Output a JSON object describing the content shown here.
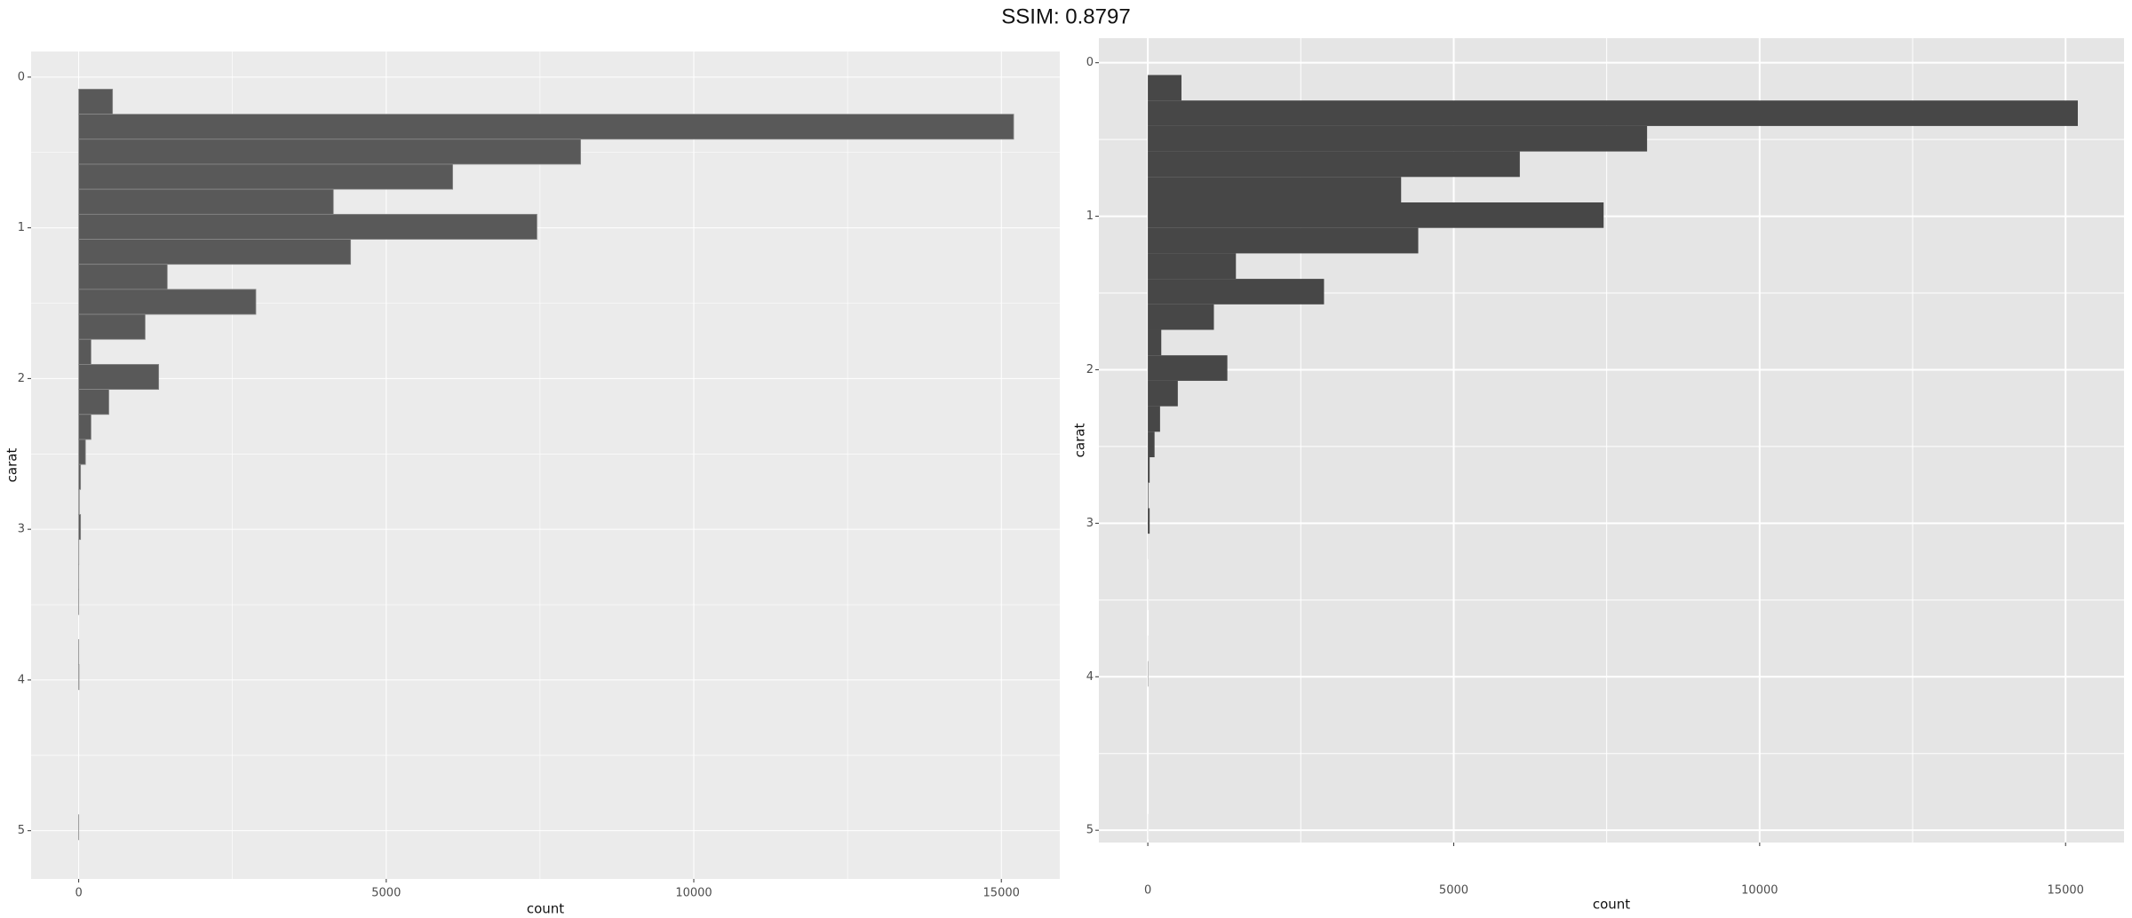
{
  "title": "SSIM: 0.8797",
  "chart_data": [
    {
      "type": "histogram",
      "orientation": "horizontal",
      "xlabel": "count",
      "ylabel": "carat",
      "color": "#595959",
      "outline": "#8a8a8a",
      "background": "#ebebeb",
      "bins": [
        0.08,
        0.246,
        0.412,
        0.578,
        0.744,
        0.91,
        1.076,
        1.242,
        1.408,
        1.574,
        1.74,
        1.906,
        2.072,
        2.238,
        2.404,
        2.57,
        2.736,
        2.902,
        3.068,
        3.234,
        3.4,
        3.566,
        3.732,
        3.898,
        4.064,
        4.23,
        4.396,
        4.562,
        4.728,
        4.894,
        5.06
      ],
      "values": [
        550,
        15200,
        8160,
        6080,
        4140,
        7450,
        4420,
        1440,
        2880,
        1080,
        200,
        1300,
        490,
        200,
        110,
        30,
        10,
        30,
        2,
        1,
        1,
        0,
        1,
        5,
        0,
        0,
        0,
        0,
        0,
        1
      ],
      "xlim": [
        -774,
        15950
      ],
      "xticks": [
        0,
        5000,
        10000,
        15000
      ],
      "ylim": [
        -0.17,
        5.32
      ],
      "yticks": [
        0,
        1,
        2,
        3,
        4,
        5
      ],
      "grid": true
    },
    {
      "type": "histogram",
      "orientation": "horizontal",
      "xlabel": "count",
      "ylabel": "carat",
      "color": "#474747",
      "outline": "none",
      "background": "#e5e5e5",
      "bins": [
        0.08,
        0.246,
        0.412,
        0.578,
        0.744,
        0.91,
        1.076,
        1.242,
        1.408,
        1.574,
        1.74,
        1.906,
        2.072,
        2.238,
        2.404,
        2.57,
        2.736,
        2.902,
        3.068,
        3.234,
        3.4,
        3.566,
        3.732,
        3.898,
        4.064,
        4.23,
        4.396,
        4.562,
        4.728,
        4.894,
        5.06
      ],
      "values": [
        550,
        15200,
        8160,
        6080,
        4140,
        7450,
        4420,
        1440,
        2880,
        1080,
        220,
        1300,
        490,
        200,
        110,
        30,
        10,
        30,
        2,
        1,
        1,
        0,
        1,
        5,
        0,
        0,
        0,
        0,
        0,
        1
      ],
      "xlim": [
        -800,
        15955
      ],
      "xticks": [
        0,
        5000,
        10000,
        15000
      ],
      "ylim": [
        -0.16,
        5.08
      ],
      "yticks": [
        0,
        1,
        2,
        3,
        4,
        5
      ],
      "grid": true
    }
  ]
}
